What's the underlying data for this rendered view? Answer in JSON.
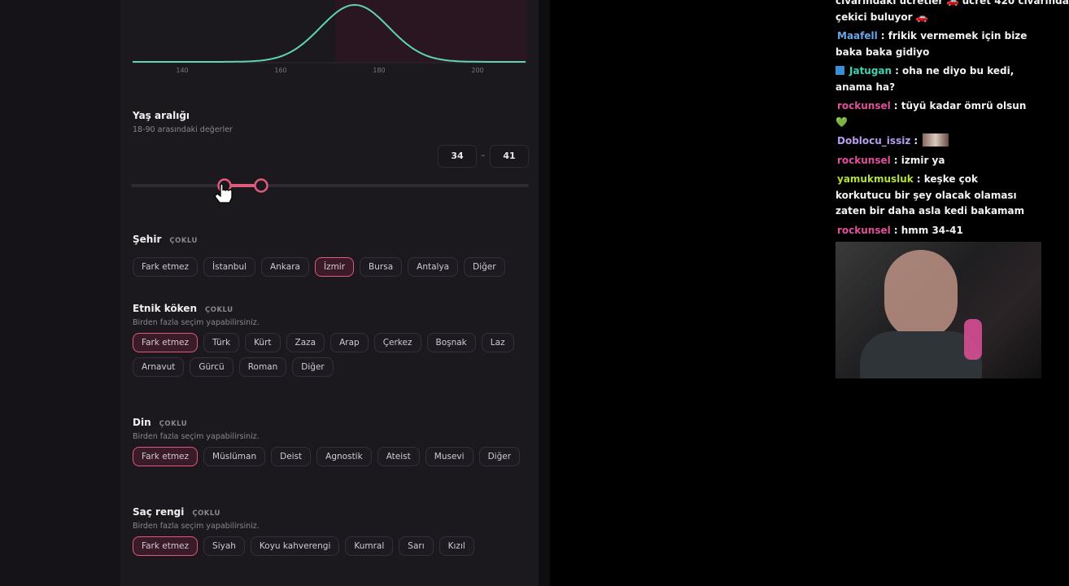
{
  "form": {
    "height_axis_labels": [
      "140",
      "160",
      "180",
      "200"
    ],
    "age": {
      "title": "Yaş aralığı",
      "subtitle": "18-90 arasındaki değerler",
      "min": "34",
      "separator": "–",
      "max": "41"
    },
    "sections": [
      {
        "title": "Şehir",
        "badge": "ÇOKLU",
        "chips": [
          {
            "label": "Fark etmez",
            "selected": false
          },
          {
            "label": "İstanbul",
            "selected": false
          },
          {
            "label": "Ankara",
            "selected": false
          },
          {
            "label": "İzmir",
            "selected": true
          },
          {
            "label": "Bursa",
            "selected": false
          },
          {
            "label": "Antalya",
            "selected": false
          },
          {
            "label": "Diğer",
            "selected": false
          }
        ]
      },
      {
        "title": "Etnik köken",
        "badge": "ÇOKLU",
        "subtitle": "Birden fazla seçim yapabilirsiniz.",
        "chips": [
          {
            "label": "Fark etmez",
            "selected": true
          },
          {
            "label": "Türk",
            "selected": false
          },
          {
            "label": "Kürt",
            "selected": false
          },
          {
            "label": "Zaza",
            "selected": false
          },
          {
            "label": "Arap",
            "selected": false
          },
          {
            "label": "Çerkez",
            "selected": false
          },
          {
            "label": "Boşnak",
            "selected": false
          },
          {
            "label": "Laz",
            "selected": false
          },
          {
            "label": "Arnavut",
            "selected": false
          },
          {
            "label": "Gürcü",
            "selected": false
          },
          {
            "label": "Roman",
            "selected": false
          },
          {
            "label": "Diğer",
            "selected": false
          }
        ]
      },
      {
        "title": "Din",
        "badge": "ÇOKLU",
        "subtitle": "Birden fazla seçim yapabilirsiniz.",
        "chips": [
          {
            "label": "Fark etmez",
            "selected": true
          },
          {
            "label": "Müslüman",
            "selected": false
          },
          {
            "label": "Deist",
            "selected": false
          },
          {
            "label": "Agnostik",
            "selected": false
          },
          {
            "label": "Ateist",
            "selected": false
          },
          {
            "label": "Musevi",
            "selected": false
          },
          {
            "label": "Diğer",
            "selected": false
          }
        ]
      },
      {
        "title": "Saç rengi",
        "badge": "ÇOKLU",
        "subtitle": "Birden fazla seçim yapabilirsiniz.",
        "chips": [
          {
            "label": "Fark etmez",
            "selected": true
          },
          {
            "label": "Siyah",
            "selected": false
          },
          {
            "label": "Koyu kahverengi",
            "selected": false
          },
          {
            "label": "Kumral",
            "selected": false
          },
          {
            "label": "Sarı",
            "selected": false
          },
          {
            "label": "Kızıl",
            "selected": false
          }
        ]
      }
    ]
  },
  "chat": {
    "partial_top": "civarındaki ücretler 🚗 ücret 420 civarında",
    "partial_text": "çekici buluyor 🚗",
    "messages": [
      {
        "user": "Maafell",
        "color": "#6aa6e6",
        "text": ": frikik vermemek için bize baka baka gidiyo"
      },
      {
        "user": "Jatugan",
        "color": "#3fd1b0",
        "text": ": oha ne diyo bu kedi, anama ha?"
      },
      {
        "user": "rockunsel",
        "color": "#e0509a",
        "text": ": tüyü kadar ömrü olsun 💚"
      },
      {
        "user": "Doblocu_issiz",
        "color": "#b89cf0",
        "text": ":"
      },
      {
        "user": "rockunsel",
        "color": "#e0509a",
        "text": ": izmir ya"
      },
      {
        "user": "yamukmusluk",
        "color": "#b5e03a",
        "text": ": keşke çok korkutucu bir şey olacak olaması zaten bir daha asla kedi bakamam"
      },
      {
        "user": "rockunsel",
        "color": "#e0509a",
        "text": ": hmm 34-41"
      }
    ]
  }
}
